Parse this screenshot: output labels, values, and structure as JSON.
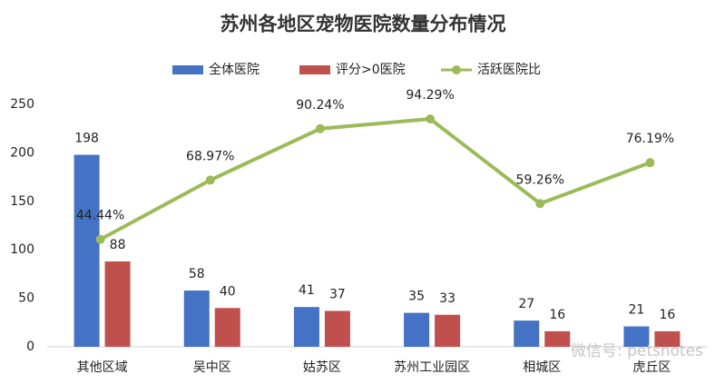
{
  "chart_data": {
    "type": "bar",
    "title": "苏州各地区宠物医院数量分布情况",
    "categories": [
      "其他区域",
      "吴中区",
      "姑苏区",
      "苏州工业园区",
      "相城区",
      "虎丘区"
    ],
    "series": [
      {
        "name": "全体医院",
        "color": "#4472c4",
        "values": [
          198,
          58,
          41,
          35,
          27,
          21
        ]
      },
      {
        "name": "评分>0医院",
        "color": "#c0504d",
        "values": [
          88,
          40,
          37,
          33,
          16,
          16
        ]
      },
      {
        "name": "活跃医院比",
        "color": "#9bbb59",
        "type": "line",
        "axis": "y2",
        "values": [
          44.44,
          68.97,
          90.24,
          94.29,
          59.26,
          76.19
        ],
        "value_labels": [
          "44.44%",
          "68.97%",
          "90.24%",
          "94.29%",
          "59.26%",
          "76.19%"
        ]
      }
    ],
    "ylim": [
      0,
      250
    ],
    "yticks": [
      0,
      50,
      100,
      150,
      200,
      250
    ],
    "y2lim": [
      0,
      100
    ],
    "legend": "top",
    "watermark": "微信号: petsnotes"
  }
}
